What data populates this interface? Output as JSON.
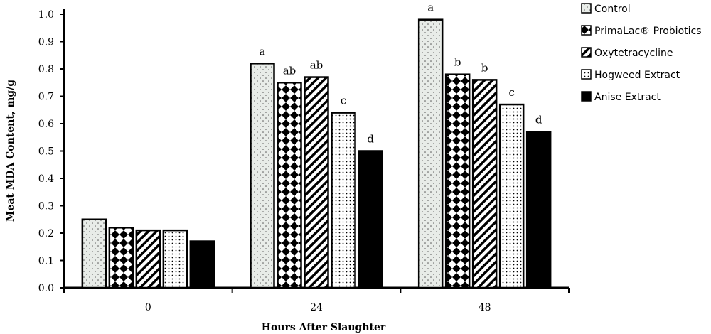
{
  "chart_data": {
    "type": "bar",
    "title": "",
    "xlabel": "Hours After Slaughter",
    "ylabel": "Meat MDA Content, mg/g",
    "categories": [
      "0",
      "24",
      "48"
    ],
    "ylim": [
      0,
      1.0
    ],
    "yticks": [
      "0.0",
      "0.1",
      "0.2",
      "0.3",
      "0.4",
      "0.5",
      "0.6",
      "0.7",
      "0.8",
      "0.9",
      "1.0"
    ],
    "grid": false,
    "legend_position": "right",
    "series": [
      {
        "name": "Control",
        "pattern": "dots-sparse",
        "values": [
          0.25,
          0.82,
          0.98
        ],
        "labels": [
          "",
          "a",
          "a"
        ]
      },
      {
        "name": "PrimaLac® Probiotics",
        "pattern": "checker",
        "values": [
          0.22,
          0.75,
          0.78
        ],
        "labels": [
          "",
          "ab",
          "b"
        ]
      },
      {
        "name": "Oxytetracycline",
        "pattern": "diagonal",
        "values": [
          0.21,
          0.77,
          0.76
        ],
        "labels": [
          "",
          "ab",
          "b"
        ]
      },
      {
        "name": "Hogweed Extract",
        "pattern": "dots-dense",
        "values": [
          0.21,
          0.64,
          0.67
        ],
        "labels": [
          "",
          "c",
          "c"
        ]
      },
      {
        "name": "Anise Extract",
        "pattern": "solid",
        "values": [
          0.17,
          0.5,
          0.57
        ],
        "labels": [
          "",
          "d",
          "d"
        ]
      }
    ],
    "colors": {
      "bar_fill_light": "#e8ece8",
      "bar_outline": "#000000",
      "solid": "#000000"
    }
  }
}
